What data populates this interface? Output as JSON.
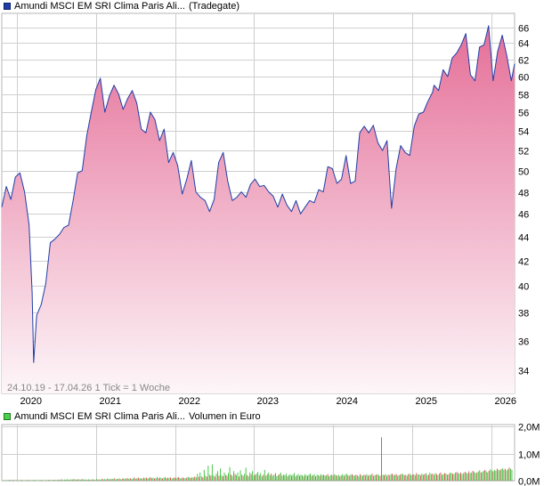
{
  "legend_price": {
    "name": "Amundi MSCI EM SRI Clima Paris Ali...",
    "venue": "(Tradegate)",
    "color": "#1f3fa8"
  },
  "legend_volume": {
    "name": "Amundi MSCI EM SRI Clima Paris Ali...",
    "label": "Volumen in Euro",
    "color": "#4cd14c"
  },
  "footnote": "24.10.19 - 17.04.26   1 Tick = 1 Woche",
  "colors": {
    "line": "#1f3fa8",
    "fill_top": "#e56f98",
    "fill_bottom": "#fdf6f9",
    "vol_up": "#38c138",
    "vol_down": "#d94a4a",
    "grid": "#cfcfcf"
  },
  "chart_data": [
    {
      "type": "area",
      "title": "",
      "xlabel": "",
      "ylabel": "",
      "x_ticks": [
        "2020",
        "2021",
        "2022",
        "2023",
        "2024",
        "2025",
        "2026"
      ],
      "y_ticks": [
        34,
        36,
        38,
        40,
        42,
        44,
        46,
        48,
        50,
        52,
        54,
        56,
        58,
        60,
        62,
        64,
        66
      ],
      "y_scale": "log",
      "ylim": [
        32.5,
        67.8
      ],
      "xlim": [
        "2019-10-24",
        "2026-04-17"
      ],
      "grid": true,
      "series": [
        {
          "name": "Amundi MSCI EM SRI Clima Paris Ali...",
          "x": [
            "2019-10-24",
            "2019-11-14",
            "2019-12-05",
            "2019-12-26",
            "2020-01-16",
            "2020-02-06",
            "2020-02-27",
            "2020-03-12",
            "2020-03-19",
            "2020-04-02",
            "2020-04-23",
            "2020-05-14",
            "2020-06-04",
            "2020-06-25",
            "2020-07-16",
            "2020-08-06",
            "2020-08-27",
            "2020-09-17",
            "2020-10-08",
            "2020-10-29",
            "2020-11-19",
            "2020-12-10",
            "2020-12-31",
            "2021-01-21",
            "2021-02-11",
            "2021-03-04",
            "2021-03-25",
            "2021-04-15",
            "2021-05-06",
            "2021-05-27",
            "2021-06-17",
            "2021-07-08",
            "2021-07-29",
            "2021-08-19",
            "2021-09-09",
            "2021-09-30",
            "2021-10-21",
            "2021-11-11",
            "2021-12-02",
            "2021-12-23",
            "2022-01-13",
            "2022-02-03",
            "2022-02-24",
            "2022-03-17",
            "2022-04-07",
            "2022-04-28",
            "2022-05-19",
            "2022-06-09",
            "2022-06-30",
            "2022-07-21",
            "2022-08-11",
            "2022-09-01",
            "2022-09-22",
            "2022-10-13",
            "2022-11-03",
            "2022-11-24",
            "2022-12-15",
            "2023-01-05",
            "2023-01-26",
            "2023-02-16",
            "2023-03-09",
            "2023-03-30",
            "2023-04-20",
            "2023-05-11",
            "2023-06-01",
            "2023-06-22",
            "2023-07-13",
            "2023-08-03",
            "2023-08-24",
            "2023-09-14",
            "2023-10-05",
            "2023-10-26",
            "2023-11-16",
            "2023-12-07",
            "2023-12-28",
            "2024-01-18",
            "2024-02-08",
            "2024-02-29",
            "2024-03-21",
            "2024-04-11",
            "2024-05-02",
            "2024-05-23",
            "2024-06-13",
            "2024-07-04",
            "2024-07-25",
            "2024-08-15",
            "2024-09-05",
            "2024-09-26",
            "2024-10-17",
            "2024-11-07",
            "2024-11-28",
            "2024-12-19",
            "2025-01-09",
            "2025-01-30",
            "2025-02-20",
            "2025-03-13",
            "2025-04-03",
            "2025-04-10",
            "2025-05-01",
            "2025-05-22",
            "2025-06-12",
            "2025-07-03",
            "2025-07-24",
            "2025-08-14",
            "2025-09-04",
            "2025-09-25",
            "2025-10-16",
            "2025-11-06",
            "2025-11-27",
            "2025-12-18",
            "2026-01-08",
            "2026-01-29",
            "2026-02-19",
            "2026-03-12",
            "2026-04-02",
            "2026-04-17"
          ],
          "values": [
            46.6,
            48.5,
            47.3,
            49.4,
            49.8,
            48.0,
            45.0,
            39.5,
            34.5,
            37.8,
            38.6,
            40.2,
            43.5,
            43.8,
            44.2,
            44.8,
            45.0,
            47.2,
            49.8,
            50.0,
            53.5,
            56.0,
            58.5,
            59.8,
            56.0,
            57.8,
            59.0,
            58.0,
            56.3,
            57.5,
            58.4,
            57.0,
            54.2,
            53.8,
            56.0,
            55.2,
            53.0,
            54.2,
            50.8,
            51.8,
            50.5,
            47.8,
            49.2,
            51.0,
            48.0,
            47.5,
            47.2,
            46.2,
            47.3,
            50.8,
            51.8,
            49.0,
            47.2,
            47.5,
            48.0,
            47.5,
            48.7,
            49.2,
            48.5,
            48.6,
            48.0,
            47.6,
            46.6,
            47.8,
            46.8,
            46.2,
            47.2,
            46.0,
            46.6,
            47.2,
            47.0,
            48.2,
            48.0,
            50.4,
            50.2,
            48.8,
            49.2,
            51.5,
            48.8,
            49.0,
            53.8,
            54.5,
            53.8,
            54.6,
            52.8,
            52.0,
            53.0,
            46.5,
            50.2,
            52.5,
            51.8,
            51.5,
            54.5,
            55.8,
            56.0,
            57.2,
            58.2,
            59.0,
            58.4,
            60.8,
            60.0,
            62.2,
            62.8,
            63.8,
            65.2,
            60.2,
            59.5,
            63.5,
            63.8,
            66.2,
            59.5,
            63.0,
            65.0,
            62.5,
            59.5,
            61.5
          ]
        }
      ]
    },
    {
      "type": "bar",
      "title": "",
      "ylabel": "Volumen in Euro",
      "y_ticks": [
        "0,0M",
        "1,0M",
        "2,0M"
      ],
      "ylim": [
        0,
        2.0
      ],
      "y_unit": "M",
      "grid": true,
      "series": [
        {
          "name": "Volumen in Euro",
          "values": [
            0.02,
            0.01,
            0.02,
            0.01,
            0.03,
            0.02,
            0.02,
            0.03,
            0.01,
            0.02,
            0.02,
            0.01,
            0.02,
            0.03,
            0.02,
            0.01,
            0.02,
            0.02,
            0.03,
            0.02,
            0.01,
            0.02,
            0.02,
            0.03,
            0.02,
            0.01,
            0.02,
            0.02,
            0.03,
            0.02,
            0.01,
            0.02,
            0.02,
            0.03,
            0.03,
            0.02,
            0.02,
            0.03,
            0.03,
            0.02,
            0.03,
            0.04,
            0.03,
            0.05,
            0.02,
            0.04,
            0.03,
            0.05,
            0.04,
            0.03,
            0.05,
            0.04,
            0.06,
            0.03,
            0.05,
            0.04,
            0.05,
            0.03,
            0.06,
            0.04,
            0.05,
            0.03,
            0.04,
            0.05,
            0.03,
            0.04,
            0.05,
            0.04,
            0.03,
            0.06,
            0.04,
            0.05,
            0.03,
            0.07,
            0.05,
            0.06,
            0.04,
            0.08,
            0.06,
            0.05,
            0.07,
            0.06,
            0.09,
            0.05,
            0.07,
            0.06,
            0.08,
            0.05,
            0.07,
            0.09,
            0.06,
            0.08,
            0.1,
            0.07,
            0.09,
            0.06,
            0.08,
            0.12,
            0.07,
            0.09,
            0.11,
            0.08,
            0.1,
            0.07,
            0.12,
            0.09,
            0.11,
            0.08,
            0.1,
            0.13,
            0.09,
            0.11,
            0.08,
            0.1,
            0.14,
            0.09,
            0.12,
            0.1,
            0.08,
            0.11,
            0.13,
            0.09,
            0.11,
            0.1,
            0.12,
            0.08,
            0.1,
            0.12,
            0.09,
            0.11,
            0.13,
            0.1,
            0.08,
            0.12,
            0.1,
            0.09,
            0.11,
            0.14,
            0.12,
            0.1,
            0.13,
            0.11,
            0.15,
            0.12,
            0.25,
            0.14,
            0.3,
            0.16,
            0.12,
            0.4,
            0.18,
            0.15,
            0.55,
            0.22,
            0.18,
            0.6,
            0.2,
            0.15,
            0.25,
            0.35,
            0.18,
            0.45,
            0.2,
            0.16,
            0.3,
            0.22,
            0.18,
            0.28,
            0.5,
            0.22,
            0.18,
            0.35,
            0.25,
            0.2,
            0.3,
            0.15,
            0.38,
            0.22,
            0.18,
            0.25,
            0.48,
            0.2,
            0.16,
            0.3,
            0.24,
            0.35,
            0.18,
            0.22,
            0.26,
            0.32,
            0.2,
            0.28,
            0.16,
            0.22,
            0.4,
            0.18,
            0.24,
            0.3,
            0.2,
            0.26,
            0.18,
            0.22,
            0.28,
            0.16,
            0.2,
            0.24,
            0.3,
            0.18,
            0.22,
            0.2,
            0.26,
            0.16,
            0.2,
            0.24,
            0.18,
            0.22,
            0.28,
            0.16,
            0.2,
            0.24,
            0.18,
            0.22,
            0.2,
            0.16,
            0.24,
            0.2,
            0.18,
            0.22,
            0.26,
            0.18,
            0.2,
            0.24,
            0.16,
            0.22,
            0.2,
            0.18,
            0.24,
            0.2,
            0.22,
            0.18,
            0.2,
            0.24,
            0.16,
            0.2,
            0.22,
            0.18,
            0.24,
            0.2,
            0.18,
            0.22,
            0.16,
            0.2,
            0.24,
            0.18,
            0.22,
            0.26,
            0.2,
            0.18,
            0.22,
            0.24,
            0.2,
            0.18,
            0.22,
            0.2,
            0.16,
            0.24,
            0.2,
            0.18,
            0.22,
            0.2,
            0.24,
            0.18,
            0.22,
            0.2,
            0.26,
            0.18,
            0.2,
            0.22,
            0.24,
            0.2,
            0.18,
            1.6,
            0.22,
            0.2,
            0.24,
            0.18,
            0.22,
            0.2,
            0.24,
            0.26,
            0.2,
            0.22,
            0.24,
            0.18,
            0.2,
            0.22,
            0.26,
            0.24,
            0.2,
            0.22,
            0.18,
            0.24,
            0.26,
            0.2,
            0.22,
            0.24,
            0.2,
            0.28,
            0.22,
            0.24,
            0.2,
            0.26,
            0.22,
            0.24,
            0.28,
            0.2,
            0.22,
            0.3,
            0.24,
            0.26,
            0.22,
            0.28,
            0.24,
            0.2,
            0.26,
            0.3,
            0.22,
            0.24,
            0.28,
            0.26,
            0.22,
            0.24,
            0.3,
            0.28,
            0.26,
            0.24,
            0.3,
            0.32,
            0.28,
            0.26,
            0.3,
            0.24,
            0.28,
            0.32,
            0.3,
            0.26,
            0.34,
            0.28,
            0.3,
            0.36,
            0.32,
            0.28,
            0.3,
            0.34,
            0.38,
            0.3,
            0.32,
            0.36,
            0.4,
            0.34,
            0.3,
            0.36,
            0.42,
            0.38,
            0.34,
            0.4,
            0.36,
            0.44,
            0.4,
            0.38,
            0.42,
            0.46,
            0.4,
            0.44,
            0.38,
            0.42,
            0.48,
            0.44,
            0.4
          ]
        }
      ]
    }
  ]
}
